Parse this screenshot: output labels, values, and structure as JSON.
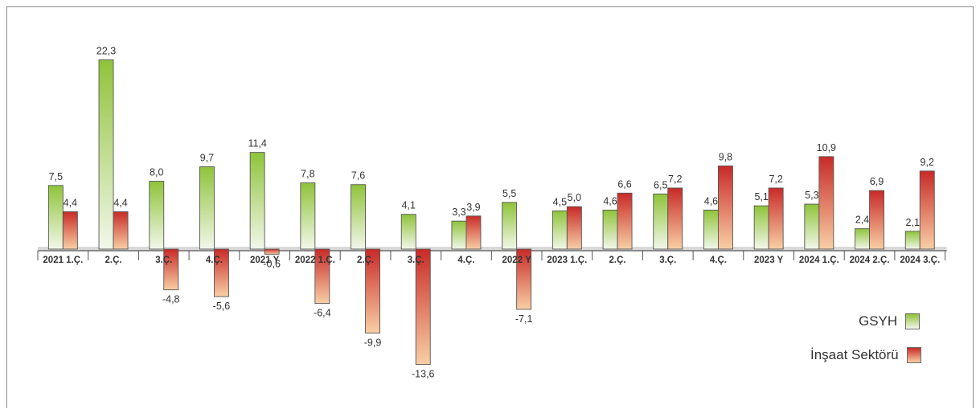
{
  "chart_data": {
    "type": "bar",
    "categories": [
      "2021 1.Ç.",
      "2.Ç.",
      "3.Ç.",
      "4.Ç.",
      "2021 Y",
      "2022 1.Ç.",
      "2.Ç.",
      "3.Ç.",
      "4.Ç.",
      "2022 Y",
      "2023 1.Ç.",
      "2.Ç.",
      "3.Ç.",
      "4.Ç.",
      "2023 Y",
      "2024 1.Ç.",
      "2024 2.Ç.",
      "2024 3.Ç."
    ],
    "series": [
      {
        "name": "GSYH",
        "values": [
          7.5,
          22.3,
          8.0,
          9.7,
          11.4,
          7.8,
          7.6,
          4.1,
          3.3,
          5.5,
          4.5,
          4.6,
          6.5,
          4.6,
          5.1,
          5.3,
          2.4,
          2.1
        ],
        "labels": [
          "7,5",
          "22,3",
          "8,0",
          "9,7",
          "11,4",
          "7,8",
          "7,6",
          "4,1",
          "3,3",
          "5,5",
          "4,5",
          "4,6",
          "6,5",
          "4,6",
          "5,1",
          "5,3",
          "2,4",
          "2,1"
        ],
        "color_top": "#8fc33a",
        "color_bottom": "#f2f7ea"
      },
      {
        "name": "İnşaat Sektörü",
        "values": [
          4.4,
          4.4,
          -4.8,
          -5.6,
          -0.6,
          -6.4,
          -9.9,
          -13.6,
          3.9,
          -7.1,
          5.0,
          6.6,
          7.2,
          9.8,
          7.2,
          10.9,
          6.9,
          9.2
        ],
        "labels": [
          "4,4",
          "4,4",
          "-4,8",
          "-5,6",
          "-0,6",
          "-6,4",
          "-9,9",
          "-13,6",
          "3,9",
          "-7,1",
          "5,0",
          "6,6",
          "7,2",
          "9,8",
          "7,2",
          "10,9",
          "6,9",
          "9,2"
        ],
        "color_top": "#c82a28",
        "color_bottom": "#f8cfa4"
      }
    ],
    "ylim": [
      -14.5,
      24
    ],
    "grid": false,
    "legend_position": "bottom-right"
  },
  "legend": {
    "gsyh": "GSYH",
    "insaat": "İnşaat Sektörü"
  }
}
